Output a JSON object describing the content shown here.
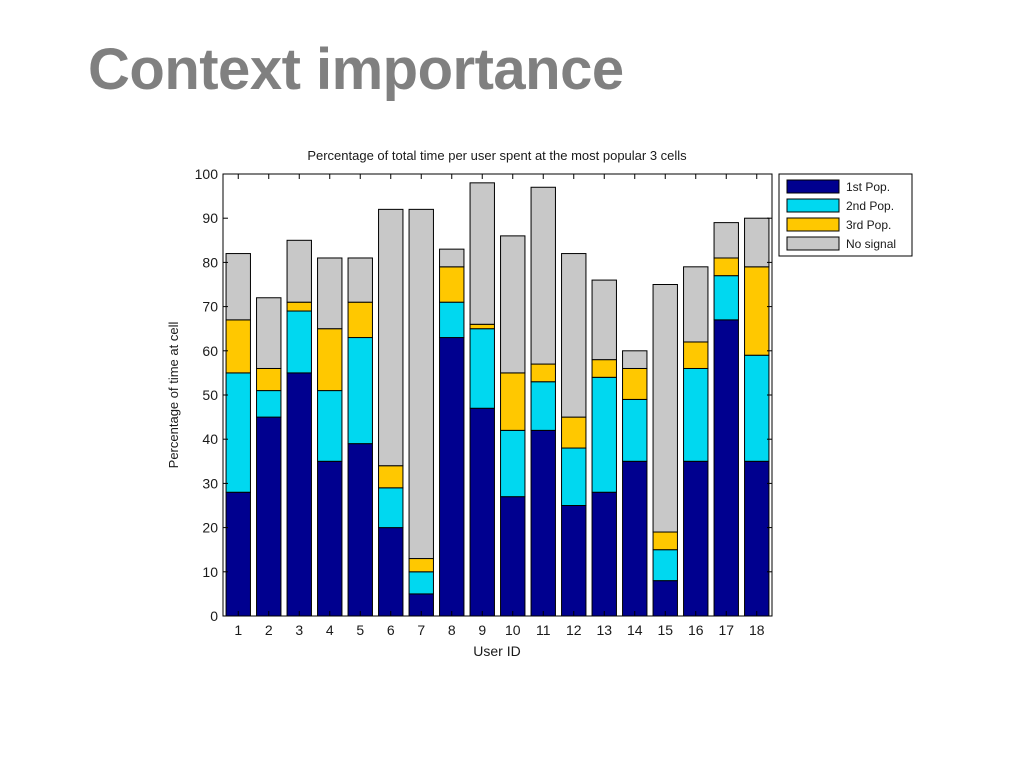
{
  "slide": {
    "title": "Context importance"
  },
  "chart_data": {
    "type": "bar",
    "stacked": true,
    "title": "Percentage of total time per user spent at the most popular 3 cells",
    "xlabel": "User ID",
    "ylabel": "Percentage of time at cell",
    "ylim": [
      0,
      100
    ],
    "yticks": [
      0,
      10,
      20,
      30,
      40,
      50,
      60,
      70,
      80,
      90,
      100
    ],
    "grid": false,
    "legend_position": "outside-top-right",
    "categories": [
      "1",
      "2",
      "3",
      "4",
      "5",
      "6",
      "7",
      "8",
      "9",
      "10",
      "11",
      "12",
      "13",
      "14",
      "15",
      "16",
      "17",
      "18"
    ],
    "series": [
      {
        "name": "1st Pop.",
        "color": "#00008f",
        "values": [
          28,
          45,
          55,
          35,
          39,
          20,
          5,
          63,
          47,
          27,
          42,
          25,
          28,
          35,
          8,
          35,
          67,
          35
        ]
      },
      {
        "name": "2nd Pop.",
        "color": "#00d8f0",
        "values": [
          27,
          6,
          14,
          16,
          24,
          9,
          5,
          8,
          18,
          15,
          11,
          13,
          26,
          14,
          7,
          21,
          10,
          24
        ]
      },
      {
        "name": "3rd Pop.",
        "color": "#ffc800",
        "values": [
          12,
          5,
          2,
          14,
          8,
          5,
          3,
          8,
          1,
          13,
          4,
          7,
          4,
          7,
          4,
          6,
          4,
          20
        ]
      },
      {
        "name": "No signal",
        "color": "#c8c8c8",
        "values": [
          15,
          16,
          14,
          16,
          10,
          58,
          79,
          4,
          32,
          31,
          40,
          37,
          18,
          4,
          56,
          17,
          8,
          11
        ]
      }
    ]
  }
}
